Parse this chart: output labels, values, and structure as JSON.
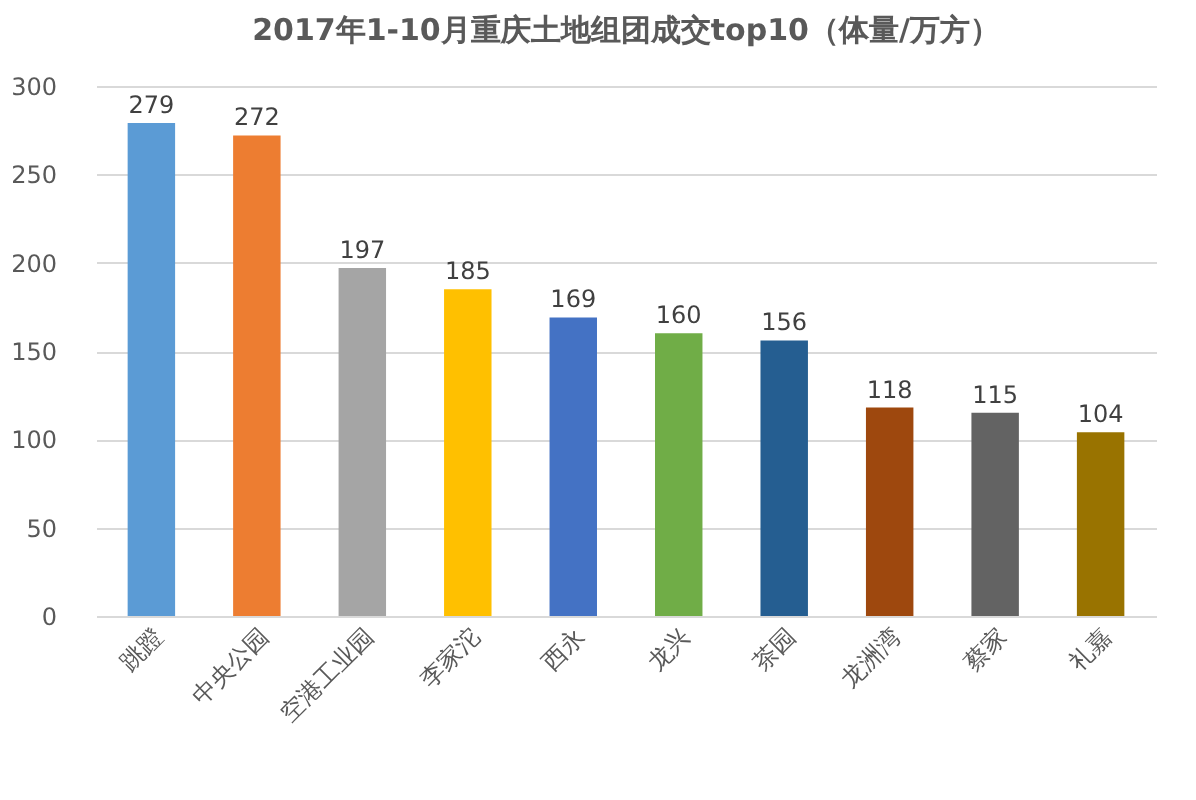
{
  "chart_data": {
    "type": "bar",
    "title": "2017年1-10月重庆土地组团成交top10（体量/万方）",
    "categories": [
      "跳蹬",
      "中央公园",
      "空港工业园",
      "李家沱",
      "西永",
      "龙兴",
      "茶园",
      "龙洲湾",
      "蔡家",
      "礼嘉"
    ],
    "values": [
      279,
      272,
      197,
      185,
      169,
      160,
      156,
      118,
      115,
      104
    ],
    "colors": [
      "#5b9bd5",
      "#ed7d31",
      "#a5a5a5",
      "#ffc000",
      "#4472c4",
      "#70ad47",
      "#255e91",
      "#9e480e",
      "#636363",
      "#997300"
    ],
    "ylim": [
      0,
      300
    ],
    "yticks": [
      0,
      50,
      100,
      150,
      200,
      250,
      300
    ],
    "grid": "y",
    "data_labels": true
  }
}
